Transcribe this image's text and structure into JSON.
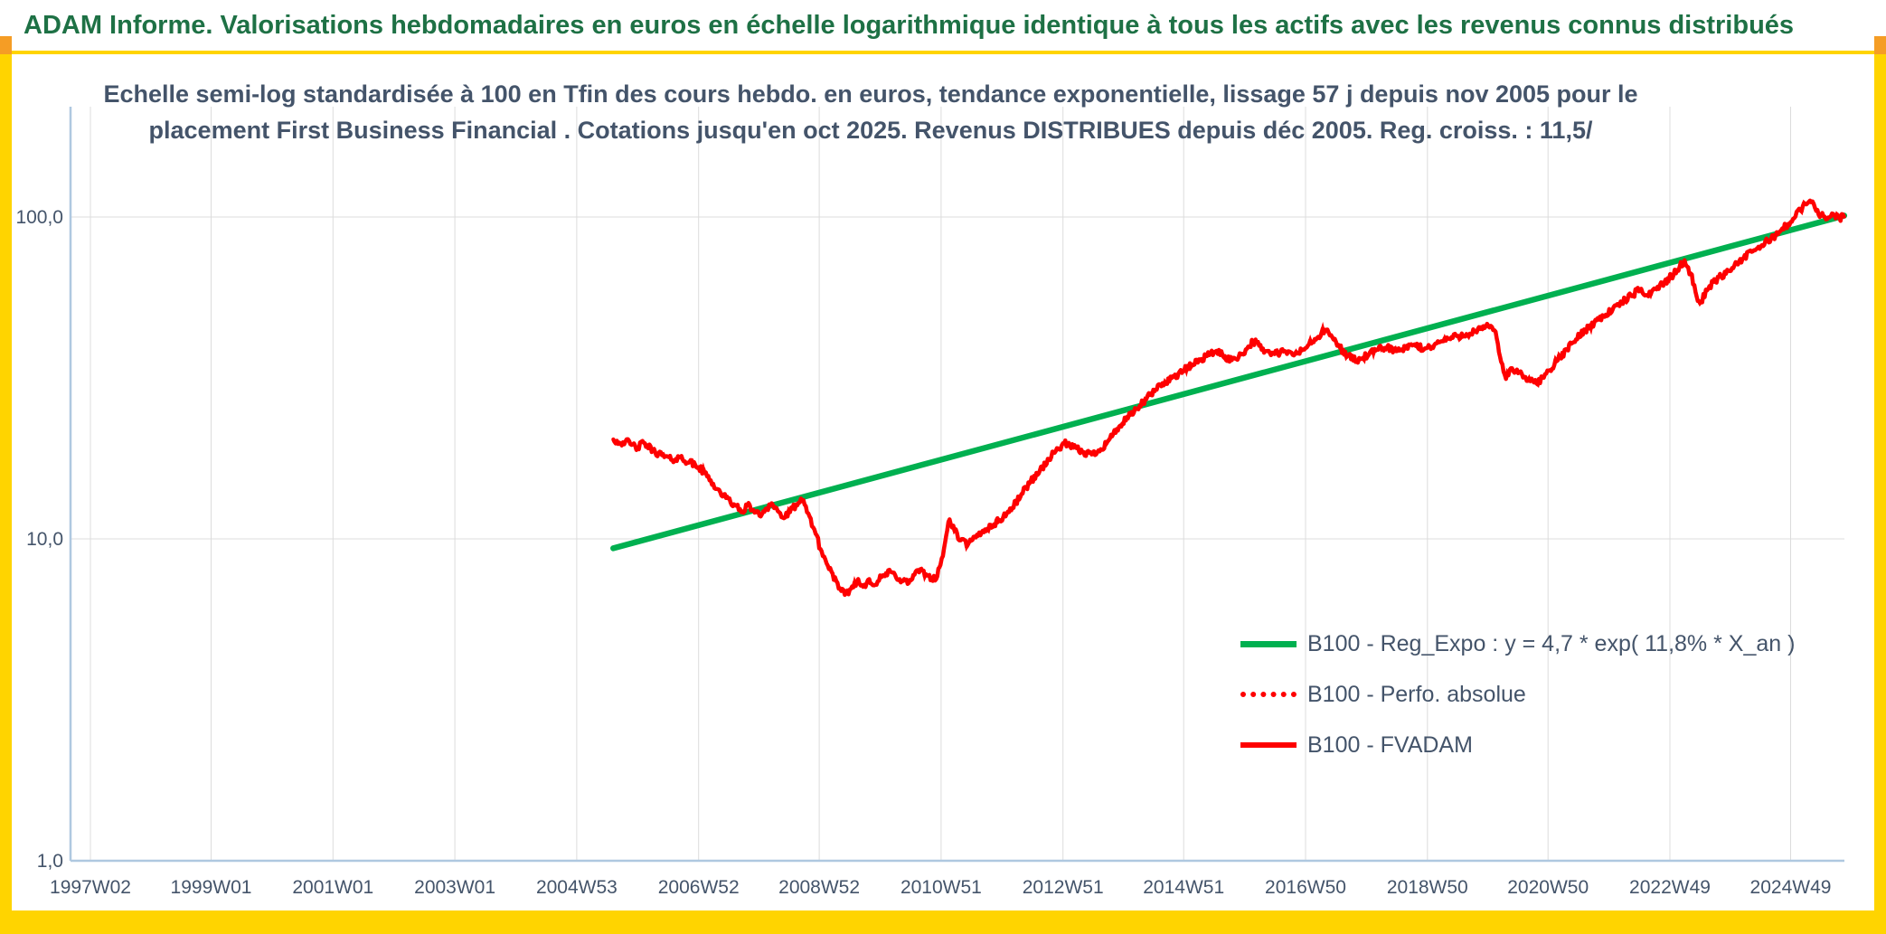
{
  "header": {
    "title": "ADAM Informe. Valorisations hebdomadaires en euros en échelle logarithmique identique à tous les actifs avec les revenus connus distribués"
  },
  "chart": {
    "title_line1": "Echelle semi-log standardisée à 100 en Tfin des cours hebdo. en euros, tendance exponentielle, lissage 57 j depuis nov 2005 pour le",
    "title_line2": "placement First Business Financial . Cotations jusqu'en oct 2025. Revenus DISTRIBUES depuis déc 2005. Reg. croiss. : 11,5/",
    "legend": [
      {
        "swatch": "green-solid",
        "label": "B100 - Reg_Expo : y = 4,7 * exp( 11,8% *  X_an )"
      },
      {
        "swatch": "red-dotted",
        "label": "B100 - Perfo. absolue"
      },
      {
        "swatch": "red-solid",
        "label": "B100 - FVADAM"
      }
    ]
  },
  "colors": {
    "banner_text": "#1E7145",
    "title_text": "#44546A",
    "frame": "#FFD400",
    "corner": "#F59D25",
    "grid": "#DCDCDC",
    "axis": "#AFC8E0",
    "tick_label": "#44546A",
    "regression": "#00B050",
    "series": "#FE0000"
  },
  "chart_data": {
    "type": "line",
    "title": "Echelle semi-log standardisée à 100 en Tfin des cours hebdo. en euros, tendance exponentielle, lissage 57 j depuis nov 2005 pour le placement First Business Financial . Cotations jusqu'en oct 2025. Revenus DISTRIBUES depuis déc 2005. Reg. croiss. : 11,5/",
    "xlabel": "",
    "ylabel": "",
    "y_axis": {
      "scale": "log",
      "min": 1.0,
      "max": 220,
      "ticks": [
        {
          "label": "100,0",
          "value": 100
        },
        {
          "label": "10,0",
          "value": 10
        },
        {
          "label": "1,0",
          "value": 1
        }
      ]
    },
    "x_axis": {
      "ticks": [
        "1997W02",
        "1999W01",
        "2001W01",
        "2003W01",
        "2004W53",
        "2006W52",
        "2008W52",
        "2010W51",
        "2012W51",
        "2014W51",
        "2016W50",
        "2018W50",
        "2020W50",
        "2022W49",
        "2024W49"
      ],
      "tick_years": [
        1997.02,
        1999.0,
        2001.0,
        2003.0,
        2005.0,
        2007.0,
        2008.98,
        2010.98,
        2012.98,
        2014.96,
        2016.96,
        2018.96,
        2020.94,
        2022.94,
        2024.92
      ],
      "min": 1996.8,
      "max": 2025.9
    },
    "series": [
      {
        "id": "regression",
        "name": "B100 - Reg_Expo",
        "style": "solid",
        "color": "#00B050",
        "formula": "y = 4,7 * exp( 11,8% * X_an )",
        "points": [
          [
            2005.6,
            9.35
          ],
          [
            2025.8,
            101.0
          ]
        ]
      },
      {
        "id": "perfo",
        "name": "B100 - Perfo. absolue",
        "style": "dotted",
        "color": "#FE0000",
        "points": "same-as-fvadam"
      },
      {
        "id": "fvadam",
        "name": "B100 - FVADAM",
        "style": "solid",
        "color": "#FE0000",
        "points": [
          [
            2005.6,
            20.4
          ],
          [
            2005.7,
            19.9
          ],
          [
            2005.8,
            20.1
          ],
          [
            2005.9,
            19.6
          ],
          [
            2006.0,
            19.2
          ],
          [
            2006.1,
            19.9
          ],
          [
            2006.25,
            18.8
          ],
          [
            2006.4,
            18.2
          ],
          [
            2006.55,
            17.6
          ],
          [
            2006.7,
            17.9
          ],
          [
            2006.85,
            17.3
          ],
          [
            2007.0,
            16.7
          ],
          [
            2007.1,
            16.0
          ],
          [
            2007.2,
            15.2
          ],
          [
            2007.3,
            14.3
          ],
          [
            2007.45,
            13.4
          ],
          [
            2007.6,
            12.7
          ],
          [
            2007.7,
            12.1
          ],
          [
            2007.8,
            12.7
          ],
          [
            2007.9,
            12.3
          ],
          [
            2008.0,
            11.8
          ],
          [
            2008.1,
            12.4
          ],
          [
            2008.2,
            12.9
          ],
          [
            2008.3,
            12.2
          ],
          [
            2008.4,
            11.6
          ],
          [
            2008.5,
            12.1
          ],
          [
            2008.6,
            12.8
          ],
          [
            2008.7,
            13.1
          ],
          [
            2008.8,
            12.0
          ],
          [
            2008.9,
            10.7
          ],
          [
            2009.0,
            9.3
          ],
          [
            2009.1,
            8.4
          ],
          [
            2009.2,
            7.8
          ],
          [
            2009.3,
            7.0
          ],
          [
            2009.4,
            6.7
          ],
          [
            2009.5,
            7.0
          ],
          [
            2009.6,
            7.4
          ],
          [
            2009.7,
            7.1
          ],
          [
            2009.8,
            7.5
          ],
          [
            2009.9,
            7.2
          ],
          [
            2010.0,
            7.6
          ],
          [
            2010.15,
            7.9
          ],
          [
            2010.3,
            7.5
          ],
          [
            2010.45,
            7.3
          ],
          [
            2010.6,
            8.0
          ],
          [
            2010.75,
            7.7
          ],
          [
            2010.9,
            7.5
          ],
          [
            2010.97,
            8.3
          ],
          [
            2011.03,
            9.4
          ],
          [
            2011.08,
            10.6
          ],
          [
            2011.12,
            11.5
          ],
          [
            2011.2,
            10.6
          ],
          [
            2011.3,
            9.9
          ],
          [
            2011.42,
            9.6
          ],
          [
            2011.55,
            10.1
          ],
          [
            2011.7,
            10.7
          ],
          [
            2011.85,
            11.1
          ],
          [
            2012.0,
            11.7
          ],
          [
            2012.15,
            12.5
          ],
          [
            2012.3,
            13.8
          ],
          [
            2012.45,
            15.1
          ],
          [
            2012.6,
            16.3
          ],
          [
            2012.75,
            17.7
          ],
          [
            2012.9,
            19.1
          ],
          [
            2013.0,
            19.8
          ],
          [
            2013.15,
            19.2
          ],
          [
            2013.3,
            18.6
          ],
          [
            2013.45,
            18.3
          ],
          [
            2013.6,
            19.0
          ],
          [
            2013.75,
            20.5
          ],
          [
            2013.9,
            22.3
          ],
          [
            2014.05,
            23.8
          ],
          [
            2014.2,
            25.4
          ],
          [
            2014.35,
            27.2
          ],
          [
            2014.5,
            29.1
          ],
          [
            2014.65,
            30.7
          ],
          [
            2014.8,
            31.9
          ],
          [
            2014.95,
            33.2
          ],
          [
            2015.1,
            34.8
          ],
          [
            2015.25,
            36.2
          ],
          [
            2015.4,
            37.6
          ],
          [
            2015.5,
            38.4
          ],
          [
            2015.6,
            37.1
          ],
          [
            2015.75,
            35.9
          ],
          [
            2015.9,
            37.4
          ],
          [
            2016.0,
            39.0
          ],
          [
            2016.1,
            41.2
          ],
          [
            2016.2,
            39.8
          ],
          [
            2016.3,
            38.3
          ],
          [
            2016.45,
            37.5
          ],
          [
            2016.6,
            38.2
          ],
          [
            2016.75,
            37.3
          ],
          [
            2016.9,
            38.5
          ],
          [
            2017.0,
            39.9
          ],
          [
            2017.15,
            42.1
          ],
          [
            2017.28,
            44.6
          ],
          [
            2017.4,
            42.3
          ],
          [
            2017.52,
            39.4
          ],
          [
            2017.65,
            37.1
          ],
          [
            2017.8,
            35.8
          ],
          [
            2017.9,
            36.5
          ],
          [
            2018.0,
            37.4
          ],
          [
            2018.15,
            38.7
          ],
          [
            2018.3,
            39.5
          ],
          [
            2018.45,
            38.3
          ],
          [
            2018.6,
            39.0
          ],
          [
            2018.75,
            40.2
          ],
          [
            2018.9,
            38.7
          ],
          [
            2019.0,
            39.5
          ],
          [
            2019.15,
            40.8
          ],
          [
            2019.3,
            41.9
          ],
          [
            2019.45,
            42.6
          ],
          [
            2019.6,
            43.3
          ],
          [
            2019.75,
            44.1
          ],
          [
            2019.9,
            45.2
          ],
          [
            2020.0,
            45.9
          ],
          [
            2020.08,
            44.0
          ],
          [
            2020.17,
            35.5
          ],
          [
            2020.25,
            31.4
          ],
          [
            2020.33,
            33.9
          ],
          [
            2020.45,
            32.7
          ],
          [
            2020.55,
            31.9
          ],
          [
            2020.65,
            30.9
          ],
          [
            2020.75,
            30.4
          ],
          [
            2020.85,
            31.7
          ],
          [
            2020.95,
            33.3
          ],
          [
            2021.1,
            35.9
          ],
          [
            2021.25,
            38.8
          ],
          [
            2021.4,
            41.7
          ],
          [
            2021.55,
            44.6
          ],
          [
            2021.7,
            47.1
          ],
          [
            2021.85,
            49.3
          ],
          [
            2022.0,
            51.6
          ],
          [
            2022.15,
            54.2
          ],
          [
            2022.3,
            56.9
          ],
          [
            2022.45,
            59.4
          ],
          [
            2022.55,
            57.2
          ],
          [
            2022.7,
            59.8
          ],
          [
            2022.85,
            62.6
          ],
          [
            2023.0,
            66.2
          ],
          [
            2023.1,
            70.1
          ],
          [
            2023.18,
            73.4
          ],
          [
            2023.28,
            66.8
          ],
          [
            2023.38,
            56.4
          ],
          [
            2023.45,
            54.6
          ],
          [
            2023.55,
            59.2
          ],
          [
            2023.65,
            62.8
          ],
          [
            2023.78,
            65.4
          ],
          [
            2023.9,
            68.2
          ],
          [
            2024.0,
            70.9
          ],
          [
            2024.15,
            74.6
          ],
          [
            2024.3,
            78.2
          ],
          [
            2024.45,
            81.8
          ],
          [
            2024.6,
            85.7
          ],
          [
            2024.75,
            90.3
          ],
          [
            2024.88,
            95.2
          ],
          [
            2025.0,
            100.4
          ],
          [
            2025.08,
            105.2
          ],
          [
            2025.16,
            109.6
          ],
          [
            2025.24,
            112.4
          ],
          [
            2025.32,
            106.8
          ],
          [
            2025.42,
            101.3
          ],
          [
            2025.52,
            98.6
          ],
          [
            2025.62,
            102.2
          ],
          [
            2025.72,
            99.4
          ],
          [
            2025.8,
            100.1
          ]
        ]
      }
    ]
  }
}
